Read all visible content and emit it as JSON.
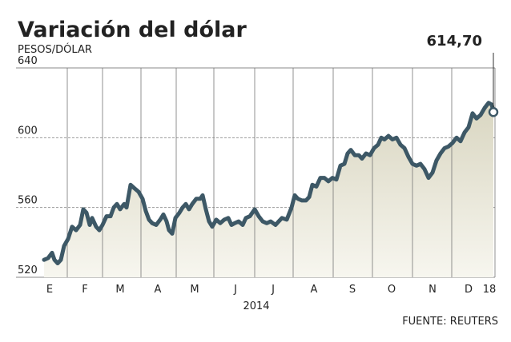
{
  "chart_data": {
    "type": "line",
    "title": "Variación del dólar",
    "subtitle": "PESOS/DÓLAR",
    "x_label": "2014",
    "source": "FUENTE: REUTERS",
    "x": [
      0,
      5,
      10,
      13,
      17,
      21,
      25,
      30,
      35,
      40,
      45,
      49,
      53,
      57,
      60,
      65,
      69,
      73,
      78,
      83,
      87,
      91,
      95,
      100,
      103,
      108,
      113,
      118,
      123,
      127,
      131,
      135,
      140,
      145,
      149,
      153,
      156,
      160,
      164,
      169,
      173,
      177,
      181,
      185,
      190,
      195,
      198,
      202,
      206,
      210,
      215,
      220,
      225,
      230,
      234,
      238,
      243,
      248,
      252,
      257,
      263,
      268,
      273,
      278,
      283,
      289,
      293,
      297,
      303,
      309,
      313,
      317,
      322,
      327,
      331,
      335,
      340,
      345,
      350,
      355,
      360,
      365,
      370,
      375,
      379,
      383,
      388,
      393,
      397,
      402,
      407,
      412,
      417,
      421,
      425,
      430,
      435,
      440,
      445,
      450,
      455,
      460,
      465,
      470,
      475,
      480,
      485,
      490,
      495,
      500,
      505,
      510,
      515,
      520,
      525,
      530,
      535,
      540,
      545,
      550,
      555,
      559,
      561
    ],
    "series": [
      {
        "name": "Dólar",
        "color": "#3d5866",
        "values": [
          530,
          531,
          534,
          530,
          528,
          530,
          538,
          542,
          549,
          547,
          550,
          559,
          557,
          550,
          554,
          549,
          547,
          550,
          555,
          555,
          560,
          562,
          559,
          562,
          560,
          573,
          571,
          569,
          565,
          558,
          553,
          551,
          550,
          553,
          556,
          552,
          547,
          545,
          554,
          557,
          560,
          562,
          559,
          562,
          565,
          565,
          567,
          559,
          552,
          549,
          553,
          551,
          553,
          554,
          550,
          551,
          552,
          550,
          554,
          555,
          559,
          555,
          552,
          551,
          552,
          550,
          552,
          554,
          553,
          560,
          567,
          565,
          564,
          564,
          566,
          573,
          572,
          577,
          577,
          575,
          577,
          576,
          584,
          585,
          591,
          593,
          590,
          590,
          588,
          591,
          590,
          594,
          596,
          600,
          599,
          601,
          599,
          600,
          596,
          594,
          589,
          585,
          584,
          585,
          582,
          577,
          580,
          587,
          591,
          594,
          595,
          597,
          600,
          598,
          603,
          606,
          614,
          611,
          613,
          617,
          620,
          619,
          614.7
        ],
        "value_labels": [
          null,
          null,
          null,
          null,
          null,
          null,
          null,
          null,
          null,
          null,
          null,
          null,
          null,
          null,
          null,
          null,
          null,
          null,
          null,
          null,
          null,
          null,
          null,
          null,
          null,
          null,
          null,
          null,
          null,
          null,
          null,
          null,
          null,
          null,
          null,
          null,
          null,
          null,
          null,
          null,
          null,
          null,
          null,
          null,
          null,
          null,
          null,
          null,
          null,
          null,
          null,
          null,
          null,
          null,
          null,
          null,
          null,
          null,
          null,
          null,
          null,
          null,
          null,
          null,
          null,
          null,
          null,
          null,
          null,
          null,
          null,
          null,
          null,
          null,
          null,
          null,
          null,
          null,
          null,
          null,
          null,
          null,
          null,
          null,
          null,
          null,
          null,
          null,
          null,
          null,
          null,
          null,
          null,
          null,
          null,
          null,
          null,
          null,
          null,
          null,
          null,
          null,
          null,
          null,
          null,
          null,
          null,
          null,
          null,
          null,
          null,
          null,
          null,
          null,
          null,
          null,
          null,
          null,
          null,
          null,
          null,
          null,
          "614,70"
        ]
      }
    ],
    "xlim": [
      0,
      563
    ],
    "xticks": [
      {
        "value": 7,
        "label": "E"
      },
      {
        "value": 51,
        "label": "F"
      },
      {
        "value": 95,
        "label": "M"
      },
      {
        "value": 142,
        "label": "A"
      },
      {
        "value": 188,
        "label": "M"
      },
      {
        "value": 239,
        "label": "J"
      },
      {
        "value": 286,
        "label": "J"
      },
      {
        "value": 337,
        "label": "A"
      },
      {
        "value": 385,
        "label": "S"
      },
      {
        "value": 434,
        "label": "O"
      },
      {
        "value": 485,
        "label": "N"
      },
      {
        "value": 530,
        "label": "D"
      },
      {
        "value": 556,
        "label": "18"
      }
    ],
    "xgrid": [
      29,
      73,
      121,
      165,
      212,
      263,
      311,
      361,
      410,
      460,
      509
    ],
    "ylim": [
      520,
      640
    ],
    "yticks": [
      520,
      560,
      600,
      640
    ],
    "grid": true
  }
}
